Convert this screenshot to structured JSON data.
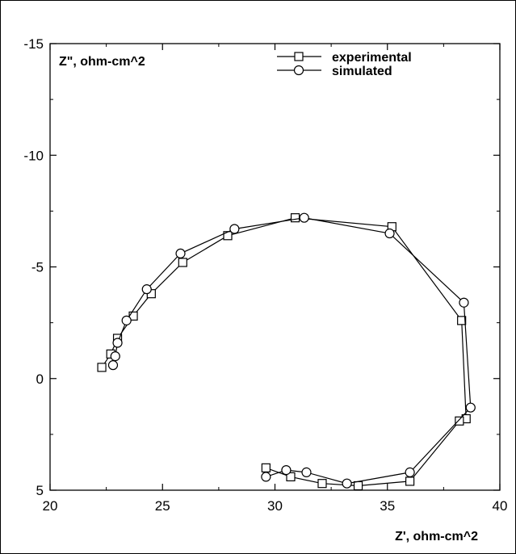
{
  "chart_data": {
    "type": "line",
    "xlabel": "Z', ohm-cm^2",
    "ylabel": "Z\", ohm-cm^2",
    "xlim": [
      20,
      40
    ],
    "ylim": [
      5,
      -15
    ],
    "y_inverted": true,
    "grid": false,
    "legend_position": "top-center",
    "x_ticks": [
      "20",
      "25",
      "30",
      "35",
      "40"
    ],
    "y_ticks": [
      "-15",
      "-10",
      "-5",
      "0",
      "5"
    ],
    "series": [
      {
        "name": "experimental",
        "marker": "square",
        "color": "#000000",
        "x": [
          22.3,
          22.7,
          23.0,
          23.7,
          24.5,
          25.9,
          27.9,
          30.9,
          35.2,
          38.3,
          38.5,
          38.2,
          36.0,
          33.7,
          32.1,
          30.7,
          29.6
        ],
        "y": [
          -0.5,
          -1.1,
          -1.8,
          -2.8,
          -3.8,
          -5.2,
          -6.4,
          -7.2,
          -6.8,
          -2.6,
          1.8,
          1.9,
          4.6,
          4.8,
          4.7,
          4.4,
          4.0
        ],
        "labels": []
      },
      {
        "name": "simulated",
        "marker": "circle",
        "color": "#000000",
        "x": [
          22.8,
          22.9,
          23.0,
          23.4,
          24.3,
          25.8,
          28.2,
          31.3,
          35.1,
          38.4,
          38.7,
          36.0,
          33.2,
          31.4,
          30.5,
          29.6
        ],
        "y": [
          -0.6,
          -1.0,
          -1.6,
          -2.6,
          -4.0,
          -5.6,
          -6.7,
          -7.2,
          -6.5,
          -3.4,
          1.3,
          4.2,
          4.7,
          4.2,
          4.1,
          4.4
        ],
        "labels": []
      }
    ]
  }
}
